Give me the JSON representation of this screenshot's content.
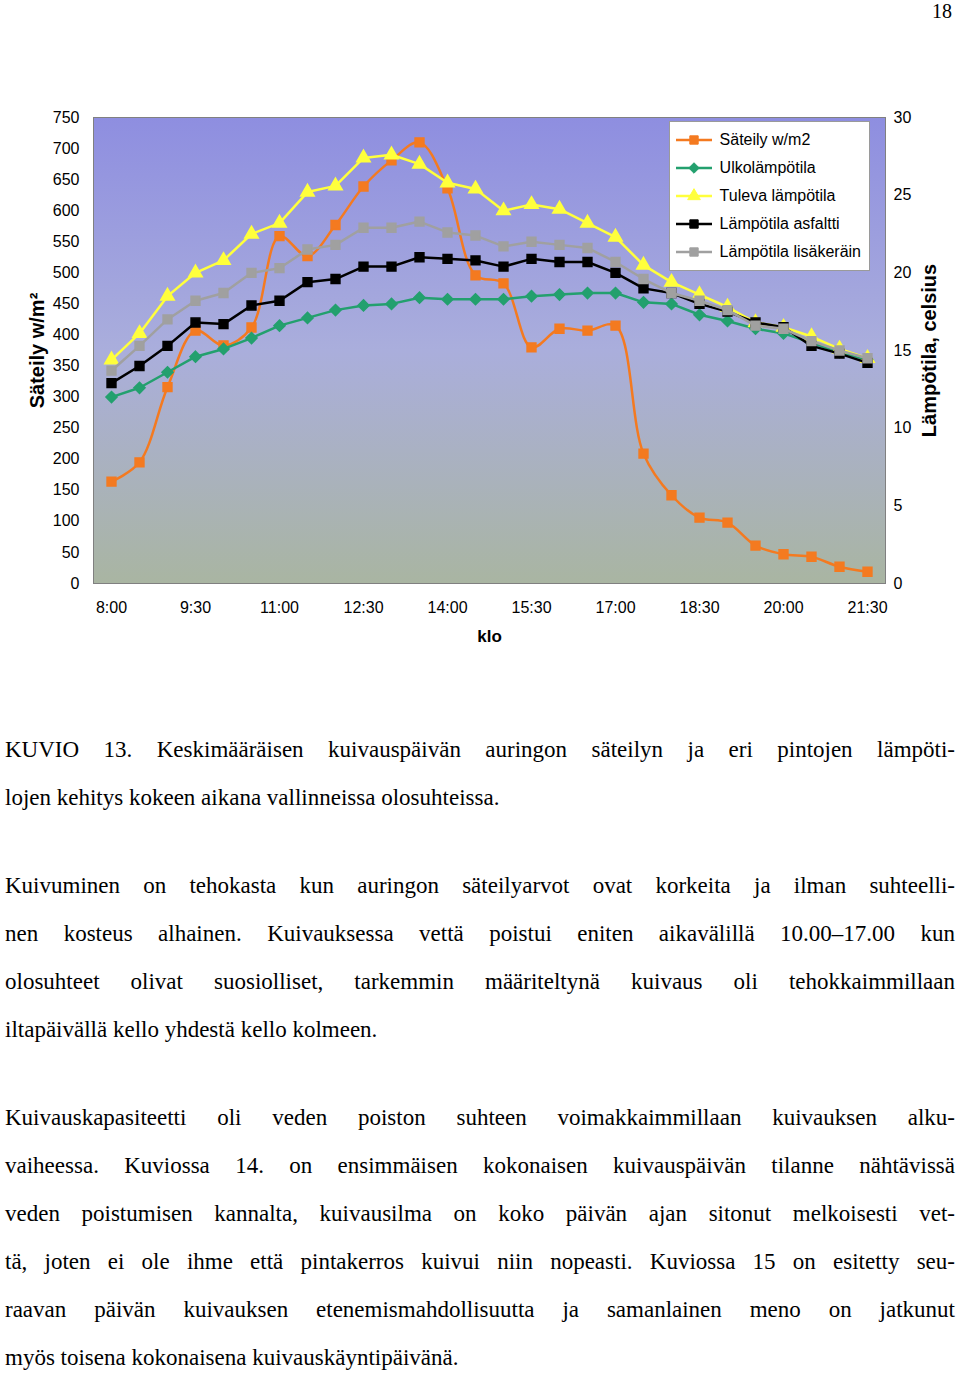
{
  "page_number": "18",
  "chart_data": {
    "type": "line",
    "x_label": "klo",
    "y_label": "Säteily w/m²",
    "y2_label": "Lämpötila, celsius",
    "categories": [
      "8:00",
      null,
      null,
      "9:30",
      null,
      null,
      "11:00",
      null,
      null,
      "12:30",
      null,
      null,
      "14:00",
      null,
      null,
      "15:30",
      null,
      null,
      "17:00",
      null,
      null,
      "18:30",
      null,
      null,
      "20:00",
      null,
      null,
      "21:30"
    ],
    "ylim": [
      0,
      750
    ],
    "yticks": [
      0,
      50,
      100,
      150,
      200,
      250,
      300,
      350,
      400,
      450,
      500,
      550,
      600,
      650,
      700,
      750
    ],
    "y2lim": [
      0,
      30
    ],
    "y2ticks": [
      0,
      5,
      10,
      15,
      20,
      25,
      30
    ],
    "grid": false,
    "legend": "top-right",
    "series": [
      {
        "name": "Säteily w/m2",
        "color": "#f47a20",
        "marker": "square",
        "line_style": "smooth",
        "values": [
          164,
          195,
          316,
          407,
          383,
          412,
          559,
          527,
          577,
          639,
          681,
          710,
          636,
          496,
          483,
          380,
          410,
          407,
          415,
          209,
          142,
          106,
          98,
          61,
          47,
          43,
          27,
          19
        ]
      },
      {
        "name": "Ulkolämpötila",
        "color": "#23a06e",
        "marker": "diamond",
        "line_style": "solid",
        "axis": "y2",
        "values": [
          12.0,
          12.6,
          13.6,
          14.6,
          15.1,
          15.8,
          16.6,
          17.1,
          17.6,
          17.9,
          18.0,
          18.4,
          18.3,
          18.3,
          18.3,
          18.5,
          18.6,
          18.7,
          18.7,
          18.1,
          18.0,
          17.3,
          16.9,
          16.4,
          16.1,
          15.5,
          14.9,
          14.4
        ]
      },
      {
        "name": "Tuleva lämpötila",
        "color": "#ffff3c",
        "marker": "triangle",
        "line_style": "solid",
        "axis": "y2",
        "values": [
          14.4,
          16.1,
          18.5,
          20.0,
          20.8,
          22.5,
          23.2,
          25.2,
          25.6,
          27.4,
          27.6,
          27.0,
          25.8,
          25.4,
          24.0,
          24.4,
          24.1,
          23.2,
          22.3,
          20.5,
          19.4,
          18.6,
          17.8,
          16.8,
          16.5,
          15.9,
          15.1,
          14.5
        ]
      },
      {
        "name": "Lämpötila asfaltti",
        "color": "#000000",
        "marker": "square",
        "line_style": "solid",
        "axis": "y2",
        "values": [
          12.9,
          14.0,
          15.3,
          16.8,
          16.7,
          17.9,
          18.2,
          19.4,
          19.6,
          20.4,
          20.4,
          21.0,
          20.9,
          20.8,
          20.4,
          20.9,
          20.7,
          20.7,
          20.0,
          19.0,
          18.7,
          18.0,
          17.5,
          16.8,
          16.5,
          15.3,
          14.8,
          14.2
        ]
      },
      {
        "name": "Lämpötila lisäkeräin",
        "color": "#a0a0a0",
        "marker": "square",
        "line_style": "solid",
        "axis": "y2",
        "values": [
          13.7,
          15.3,
          17.0,
          18.2,
          18.7,
          20.0,
          20.3,
          21.5,
          21.8,
          22.9,
          22.9,
          23.3,
          22.6,
          22.4,
          21.7,
          22.0,
          21.8,
          21.6,
          20.7,
          19.6,
          18.7,
          18.2,
          17.6,
          16.6,
          16.4,
          15.6,
          15.0,
          14.5
        ]
      }
    ]
  },
  "caption_lines": [
    "KUVIO 13. Keskimääräisen kuivauspäivän auringon säteilyn ja eri pintojen lämpöti-",
    "lojen kehitys kokeen aikana vallinneissa olosuhteissa."
  ],
  "paragraphs": [
    [
      "Kuivuminen on tehokasta kun auringon säteilyarvot ovat korkeita ja ilman suhteelli-",
      "nen kosteus alhainen. Kuivauksessa vettä poistui eniten aikavälillä 10.00–17.00 kun",
      "olosuhteet olivat suosiolliset, tarkemmin määriteltynä kuivaus oli tehokkaimmillaan",
      "iltapäivällä kello yhdestä kello kolmeen."
    ],
    [
      "Kuivauskapasiteetti oli veden poiston suhteen voimakkaimmillaan kuivauksen alku-",
      "vaiheessa. Kuviossa 14. on ensimmäisen kokonaisen kuivauspäivän tilanne nähtävissä",
      "veden poistumisen kannalta, kuivausilma on koko päivän ajan sitonut melkoisesti vet-",
      "tä, joten ei ole ihme että pintakerros kuivui niin nopeasti. Kuviossa 15 on esitetty seu-",
      "raavan päivän kuivauksen etenemismahdollisuutta ja samanlainen meno on jatkunut",
      "myös toisena kokonaisena kuivauskäyntipäivänä."
    ]
  ]
}
